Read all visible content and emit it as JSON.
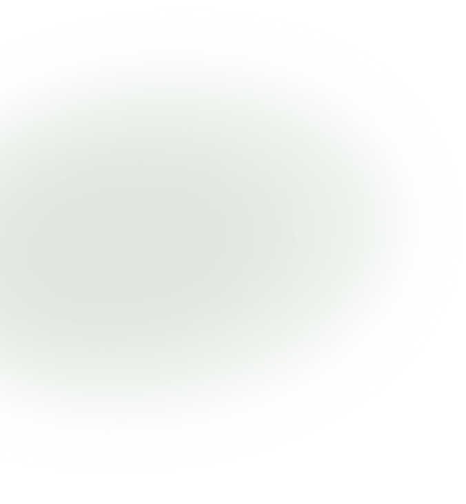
{
  "background": {
    "base_color": "#ffffff",
    "glow_color": "#dfe6de",
    "glow_mid_color": "#ecf1eb"
  }
}
